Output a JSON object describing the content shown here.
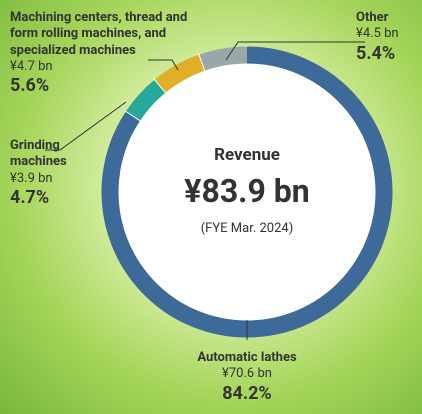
{
  "chart_data": {
    "type": "donut",
    "center_title": "Revenue",
    "total_label": "¥83.9 bn",
    "subtitle": "(FYE Mar. 2024)",
    "categories": [
      "Automatic lathes",
      "Grinding machines",
      "Machining centers, thread and form rolling machines,  and specialized machines",
      "Other"
    ],
    "values": [
      84.2,
      4.7,
      5.6,
      5.4
    ],
    "value_labels": [
      "84.2%",
      "4.7%",
      "5.6%",
      "5.4%"
    ],
    "amount_labels": [
      "¥70.6 bn",
      "¥3.9 bn",
      "¥4.7 bn",
      "¥4.5 bn"
    ],
    "colors": [
      "#3d6a99",
      "#27a89a",
      "#e2ad28",
      "#9ba6a9"
    ]
  }
}
